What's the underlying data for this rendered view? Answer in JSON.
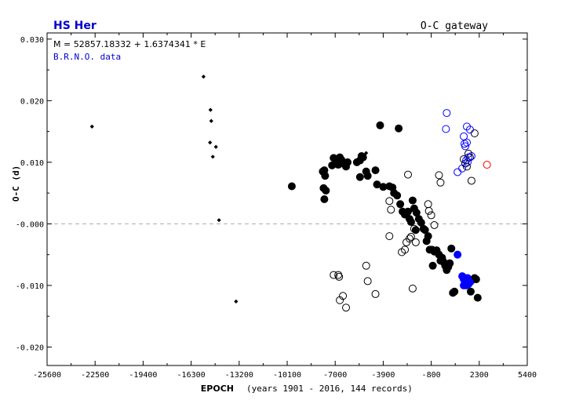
{
  "header": {
    "star_name": "HS Her",
    "gateway": "O-C gateway",
    "ephemeris": "M = 52857.18332 + 1.6374341 * E",
    "data_source": "B.R.N.O. data"
  },
  "axes": {
    "xlabel": "EPOCH",
    "xlabel_note": "(years 1901 - 2016, 144 records)",
    "ylabel": "O-C (d)"
  },
  "colors": {
    "axis": "#000000",
    "title": "#0000cc",
    "source": "#0000cc",
    "blue_points": "#0000ff",
    "red_points": "#ff0000",
    "zero_line": "#aaaaaa"
  },
  "chart_data": {
    "type": "scatter",
    "xlabel": "EPOCH",
    "ylabel": "O-C (d)",
    "xlim": [
      -25600,
      5400
    ],
    "ylim": [
      -0.023,
      0.031
    ],
    "x_ticks": [
      -25600,
      -22500,
      -19400,
      -16300,
      -13200,
      -10100,
      -7000,
      -3900,
      -800,
      2300,
      5400
    ],
    "x_tick_labels": [
      "-25600",
      "-22500",
      "-19400",
      "-16300",
      "-13200",
      "-10100",
      "-7000",
      "-3900",
      "-800",
      "2300",
      "5400"
    ],
    "y_ticks": [
      0.03,
      0.02,
      0.01,
      0.0,
      -0.01,
      -0.02
    ],
    "y_tick_labels": [
      "0.030",
      "0.020",
      "0.010",
      "-0.000",
      "-0.010",
      "-0.020"
    ],
    "zero_line": true,
    "series": [
      {
        "style": "small-diamond",
        "color": "#000000",
        "points": [
          [
            -22700,
            0.0158
          ],
          [
            -15500,
            0.0239
          ],
          [
            -15050,
            0.0185
          ],
          [
            -15000,
            0.0167
          ],
          [
            -15080,
            0.0132
          ],
          [
            -14700,
            0.0125
          ],
          [
            -14900,
            0.0109
          ],
          [
            -14500,
            0.0006
          ],
          [
            -13400,
            -0.0126
          ],
          [
            -5000,
            0.0115
          ]
        ]
      },
      {
        "style": "filled-circle",
        "color": "#000000",
        "points": [
          [
            -9800,
            0.0061
          ],
          [
            -7800,
            0.0085
          ],
          [
            -7700,
            0.0087
          ],
          [
            -7650,
            0.0078
          ],
          [
            -7750,
            0.0058
          ],
          [
            -7600,
            0.0054
          ],
          [
            -7700,
            0.004
          ],
          [
            -7200,
            0.0095
          ],
          [
            -7100,
            0.0107
          ],
          [
            -6900,
            0.0102
          ],
          [
            -6700,
            0.0108
          ],
          [
            -6800,
            0.0096
          ],
          [
            -6600,
            0.0104
          ],
          [
            -6500,
            0.0098
          ],
          [
            -6300,
            0.0093
          ],
          [
            -6200,
            0.01
          ],
          [
            -5600,
            0.01
          ],
          [
            -5400,
            0.0103
          ],
          [
            -5300,
            0.011
          ],
          [
            -5200,
            0.0108
          ],
          [
            -5000,
            0.0085
          ],
          [
            -5400,
            0.0076
          ],
          [
            -4900,
            0.0078
          ],
          [
            -4400,
            0.0087
          ],
          [
            -4300,
            0.0064
          ],
          [
            -4100,
            0.016
          ],
          [
            -3900,
            0.006
          ],
          [
            -3500,
            0.0061
          ],
          [
            -3300,
            0.0059
          ],
          [
            -3200,
            0.005
          ],
          [
            -3000,
            0.0046
          ],
          [
            -2900,
            0.0155
          ],
          [
            -2800,
            0.0032
          ],
          [
            -2650,
            0.002
          ],
          [
            -2500,
            0.0015
          ],
          [
            -2300,
            0.002
          ],
          [
            -2200,
            0.0008
          ],
          [
            -2100,
            0.0003
          ],
          [
            -2000,
            0.0038
          ],
          [
            -1900,
            0.0025
          ],
          [
            -1800,
            -0.001
          ],
          [
            -1750,
            0.0018
          ],
          [
            -1600,
            0.0008
          ],
          [
            -1450,
            0.0002
          ],
          [
            -1300,
            -0.0008
          ],
          [
            -1200,
            -0.001
          ],
          [
            -1100,
            -0.0028
          ],
          [
            -1000,
            -0.002
          ],
          [
            -900,
            -0.0042
          ],
          [
            -750,
            -0.0042
          ],
          [
            -700,
            -0.0068
          ],
          [
            -600,
            -0.0045
          ],
          [
            -450,
            -0.0043
          ],
          [
            -300,
            -0.005
          ],
          [
            -200,
            -0.006
          ],
          [
            -100,
            -0.0055
          ],
          [
            0,
            -0.0062
          ],
          [
            100,
            -0.0068
          ],
          [
            200,
            -0.0075
          ],
          [
            300,
            -0.007
          ],
          [
            400,
            -0.0064
          ],
          [
            500,
            -0.004
          ],
          [
            600,
            -0.0112
          ],
          [
            700,
            -0.011
          ],
          [
            1300,
            -0.0087
          ],
          [
            1400,
            -0.009
          ],
          [
            1600,
            -0.0092
          ],
          [
            1800,
            -0.0092
          ],
          [
            2000,
            -0.0088
          ],
          [
            2200,
            -0.012
          ],
          [
            1750,
            -0.011
          ],
          [
            2100,
            -0.009
          ]
        ]
      },
      {
        "style": "open-circle",
        "color": "#000000",
        "points": [
          [
            -7100,
            -0.0083
          ],
          [
            -6800,
            -0.0083
          ],
          [
            -6750,
            -0.0086
          ],
          [
            -6700,
            -0.0124
          ],
          [
            -6500,
            -0.0117
          ],
          [
            -6300,
            -0.0136
          ],
          [
            -5000,
            -0.0068
          ],
          [
            -4900,
            -0.0093
          ],
          [
            -4400,
            -0.0114
          ],
          [
            -3500,
            0.0037
          ],
          [
            -3400,
            0.0023
          ],
          [
            -3500,
            -0.002
          ],
          [
            -2700,
            -0.0046
          ],
          [
            -2500,
            -0.0042
          ],
          [
            -2400,
            -0.003
          ],
          [
            -2300,
            0.008
          ],
          [
            -2200,
            -0.0024
          ],
          [
            -2100,
            -0.0021
          ],
          [
            -2000,
            -0.0105
          ],
          [
            -1900,
            -0.0008
          ],
          [
            -1800,
            -0.003
          ],
          [
            -1000,
            0.0032
          ],
          [
            -950,
            0.0021
          ],
          [
            -800,
            0.0014
          ],
          [
            -300,
            0.0079
          ],
          [
            -200,
            0.0067
          ],
          [
            -600,
            -0.0002
          ],
          [
            100,
            -0.0067
          ],
          [
            1300,
            0.0105
          ],
          [
            1400,
            0.0098
          ],
          [
            1500,
            0.0093
          ],
          [
            1800,
            0.007
          ],
          [
            2000,
            0.0147
          ],
          [
            1700,
            0.0108
          ],
          [
            1600,
            0.0114
          ]
        ]
      },
      {
        "style": "open-circle",
        "color": "#0000ff",
        "points": [
          [
            200,
            0.018
          ],
          [
            150,
            0.0154
          ],
          [
            1500,
            0.0158
          ],
          [
            1700,
            0.0153
          ],
          [
            1300,
            0.0142
          ],
          [
            1350,
            0.013
          ],
          [
            1400,
            0.0126
          ],
          [
            1500,
            0.0132
          ],
          [
            1600,
            0.0108
          ],
          [
            1800,
            0.011
          ],
          [
            1550,
            0.01
          ],
          [
            1450,
            0.0103
          ],
          [
            900,
            0.0084
          ],
          [
            1200,
            0.009
          ]
        ]
      },
      {
        "style": "filled-circle",
        "color": "#0000ff",
        "points": [
          [
            900,
            -0.005
          ],
          [
            1200,
            -0.0085
          ],
          [
            1300,
            -0.009
          ],
          [
            1400,
            -0.0092
          ],
          [
            1500,
            -0.0095
          ],
          [
            1600,
            -0.0098
          ],
          [
            1300,
            -0.01
          ],
          [
            1450,
            -0.01
          ],
          [
            1700,
            -0.0095
          ],
          [
            1550,
            -0.0088
          ]
        ]
      },
      {
        "style": "open-circle",
        "color": "#ff0000",
        "points": [
          [
            2800,
            0.0096
          ]
        ]
      }
    ]
  }
}
